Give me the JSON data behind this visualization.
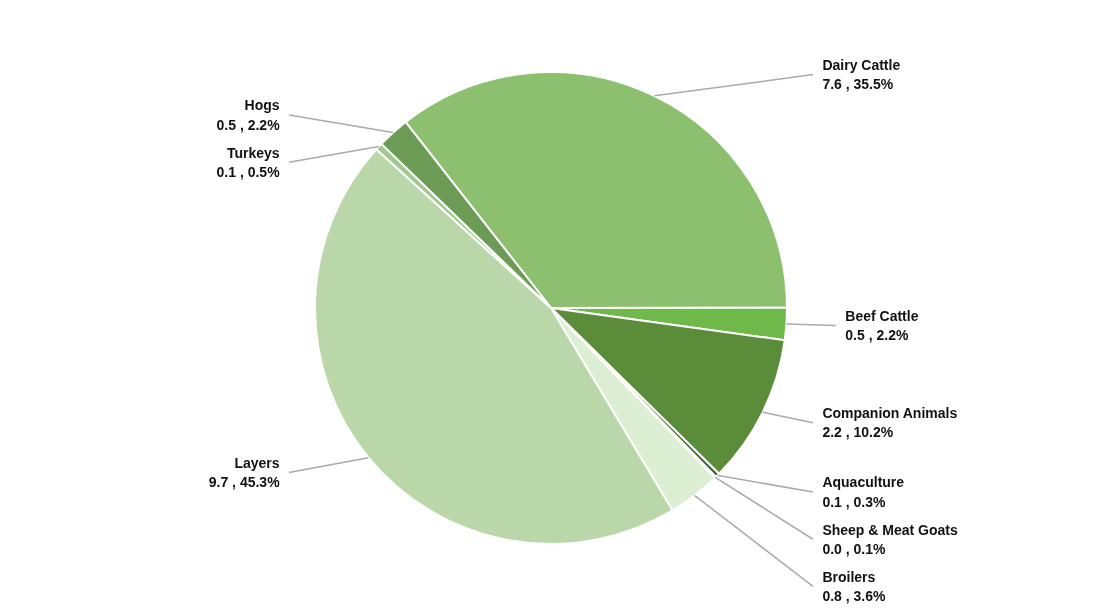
{
  "chart_data": {
    "type": "pie",
    "categories": [
      "Dairy Cattle",
      "Beef Cattle",
      "Companion Animals",
      "Aquaculture",
      "Sheep & Meat Goats",
      "Broilers",
      "Layers",
      "Turkeys",
      "Hogs"
    ],
    "values": [
      35.5,
      2.2,
      10.2,
      0.3,
      0.1,
      3.6,
      45.3,
      0.5,
      2.2
    ],
    "value_labels": [
      "7.6 , 35.5%",
      "0.5 , 2.2%",
      "2.2 , 10.2%",
      "0.1 , 0.3%",
      "0.0 , 0.1%",
      "0.8 , 3.6%",
      "9.7 , 45.3%",
      "0.1 , 0.5%",
      "0.5 , 2.2%"
    ],
    "colors": [
      "#8cc06e",
      "#6fb84a",
      "#5a8c3a",
      "#3d6b2a",
      "#cfe6c2",
      "#dcefd3",
      "#b9d7a8",
      "#a0c890",
      "#6c9b55"
    ],
    "legend": false
  }
}
